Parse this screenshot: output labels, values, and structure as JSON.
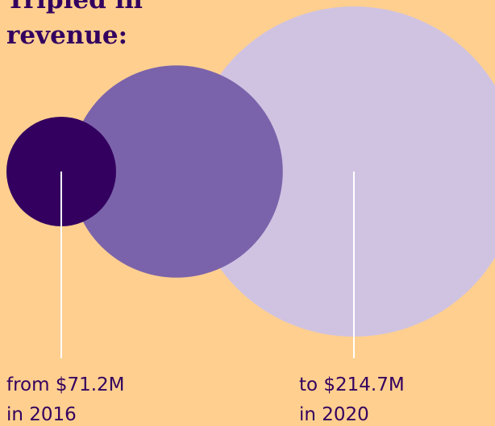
{
  "chart_data": {
    "type": "bubble",
    "title": "Tripled in revenue:",
    "categories": [
      "in 2016",
      null,
      "in 2020"
    ],
    "values": [
      71.2,
      138,
      214.7
    ],
    "value_labels": [
      "from $71.2M",
      null,
      "to $214.7M"
    ],
    "colors": [
      "#33005f",
      "#7b63ab",
      "#d0c3e2"
    ]
  }
}
